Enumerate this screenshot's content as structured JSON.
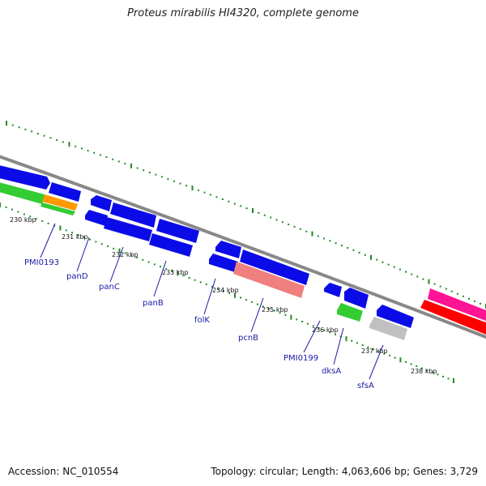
{
  "title": "Proteus mirabilis HI4320, complete genome",
  "footer": {
    "accession": "Accession: NC_010554",
    "summary": "Topology: circular; Length: 4,063,606 bp; Genes: 3,729"
  },
  "colors": {
    "cds": "#0b0be8",
    "trna": "#33cc33",
    "misc": "#ff9900",
    "pink": "#f08080",
    "grey": "#c0c0c0",
    "backbone": "#888888",
    "ticks": "#228b22",
    "label": "#1a1aa6"
  },
  "ticks": {
    "major": [
      "230 kbp",
      "231 kbp",
      "232 kbp",
      "233 kbp",
      "234 kbp",
      "235 kbp",
      "236 kbp",
      "237 kbp",
      "238 kbp"
    ]
  },
  "genes": [
    {
      "name": "PMI0193"
    },
    {
      "name": "panD"
    },
    {
      "name": "panC"
    },
    {
      "name": "panB"
    },
    {
      "name": "folK"
    },
    {
      "name": "pcnB"
    },
    {
      "name": "PMI0199"
    },
    {
      "name": "dksA"
    },
    {
      "name": "sfsA"
    }
  ]
}
